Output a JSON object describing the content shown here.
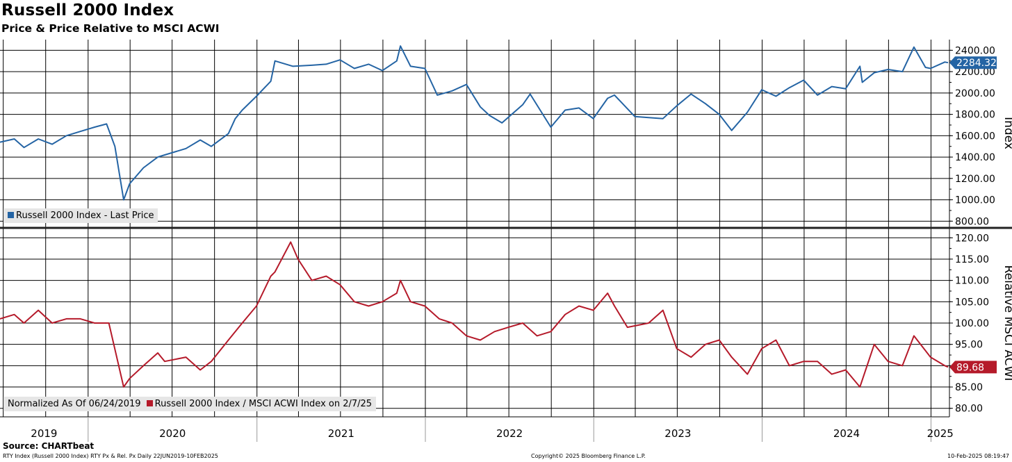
{
  "title": "Russell 2000 Index",
  "subtitle": "Price & Price Relative to MSCI ACWI",
  "source": "Source: CHARTbeat",
  "footer": {
    "left": "RTY Index (Russell 2000 Index) RTY Px & Rel. Px  Daily 22JUN2019-10FEB2025",
    "center": "Copyright© 2025 Bloomberg Finance L.P.",
    "right": "10-Feb-2025 08:19:47"
  },
  "colors": {
    "price": "#2464a4",
    "relative": "#b51a2a",
    "legend_bg": "#e6e6e6",
    "grid": "#000000"
  },
  "chart_data": [
    {
      "type": "line",
      "panel": "top",
      "ylabel": "Index",
      "ylim": [
        750,
        2500
      ],
      "yticks": [
        "800.00",
        "1000.00",
        "1200.00",
        "1400.00",
        "1600.00",
        "1800.00",
        "2000.00",
        "2200.00",
        "2400.00"
      ],
      "series": [
        {
          "name": "Russell 2000 Index - Last Price",
          "last_label": "2284.32",
          "x": [
            "2019-06-24",
            "2019-07-25",
            "2019-08-15",
            "2019-09-15",
            "2019-10-15",
            "2019-11-15",
            "2019-12-15",
            "2020-01-15",
            "2020-02-10",
            "2020-02-28",
            "2020-03-18",
            "2020-03-31",
            "2020-04-30",
            "2020-05-31",
            "2020-06-15",
            "2020-07-31",
            "2020-08-31",
            "2020-09-24",
            "2020-10-31",
            "2020-11-15",
            "2020-11-30",
            "2020-12-31",
            "2021-01-31",
            "2021-02-09",
            "2021-03-20",
            "2021-04-30",
            "2021-05-31",
            "2021-06-30",
            "2021-07-31",
            "2021-08-31",
            "2021-09-30",
            "2021-10-31",
            "2021-11-08",
            "2021-11-30",
            "2021-12-31",
            "2022-01-27",
            "2022-02-28",
            "2022-03-31",
            "2022-04-30",
            "2022-05-20",
            "2022-06-16",
            "2022-07-31",
            "2022-08-16",
            "2022-09-30",
            "2022-10-31",
            "2022-11-30",
            "2022-12-31",
            "2023-01-31",
            "2023-02-15",
            "2023-03-31",
            "2023-04-30",
            "2023-05-31",
            "2023-06-30",
            "2023-07-31",
            "2023-08-31",
            "2023-09-30",
            "2023-10-27",
            "2023-11-30",
            "2023-12-31",
            "2024-01-31",
            "2024-02-29",
            "2024-03-31",
            "2024-04-30",
            "2024-05-31",
            "2024-06-30",
            "2024-07-31",
            "2024-08-05",
            "2024-08-31",
            "2024-09-30",
            "2024-10-31",
            "2024-11-25",
            "2024-12-20",
            "2024-12-31",
            "2025-01-31",
            "2025-02-07"
          ],
          "values": [
            1540,
            1570,
            1490,
            1570,
            1520,
            1600,
            1640,
            1680,
            1710,
            1500,
            1000,
            1150,
            1300,
            1400,
            1420,
            1480,
            1560,
            1500,
            1620,
            1760,
            1840,
            1970,
            2110,
            2300,
            2250,
            2260,
            2270,
            2310,
            2230,
            2270,
            2210,
            2300,
            2440,
            2250,
            2230,
            1980,
            2020,
            2080,
            1870,
            1790,
            1720,
            1890,
            1990,
            1680,
            1840,
            1860,
            1760,
            1950,
            1980,
            1780,
            1770,
            1760,
            1880,
            1990,
            1900,
            1800,
            1650,
            1820,
            2030,
            1970,
            2050,
            2120,
            1980,
            2060,
            2040,
            2250,
            2100,
            2190,
            2220,
            2200,
            2430,
            2240,
            2230,
            2290,
            2284
          ]
        }
      ]
    },
    {
      "type": "line",
      "panel": "bottom",
      "ylabel": "Relative MSCI ACWI",
      "ylim": [
        78,
        122
      ],
      "yticks": [
        "80.00",
        "85.00",
        "90.00",
        "95.00",
        "100.00",
        "105.00",
        "110.00",
        "115.00",
        "120.00"
      ],
      "normalized_label": "Normalized As Of 06/24/2019",
      "series": [
        {
          "name": "Russell 2000 Index / MSCI ACWI Index on 2/7/25",
          "last_label": "89.68",
          "x": [
            "2019-06-24",
            "2019-07-25",
            "2019-08-15",
            "2019-09-15",
            "2019-10-15",
            "2019-11-15",
            "2019-12-15",
            "2020-01-15",
            "2020-02-15",
            "2020-03-18",
            "2020-03-31",
            "2020-04-30",
            "2020-05-31",
            "2020-06-15",
            "2020-07-31",
            "2020-08-31",
            "2020-09-24",
            "2020-10-31",
            "2020-11-30",
            "2020-12-31",
            "2021-01-31",
            "2021-02-09",
            "2021-03-15",
            "2021-03-31",
            "2021-04-30",
            "2021-05-31",
            "2021-06-30",
            "2021-07-31",
            "2021-08-31",
            "2021-09-30",
            "2021-10-31",
            "2021-11-08",
            "2021-11-30",
            "2021-12-31",
            "2022-01-31",
            "2022-02-28",
            "2022-03-31",
            "2022-04-30",
            "2022-05-31",
            "2022-06-30",
            "2022-07-31",
            "2022-08-31",
            "2022-09-30",
            "2022-10-31",
            "2022-11-30",
            "2022-12-31",
            "2023-01-31",
            "2023-02-15",
            "2023-03-15",
            "2023-04-30",
            "2023-05-31",
            "2023-06-30",
            "2023-07-31",
            "2023-08-31",
            "2023-09-30",
            "2023-10-27",
            "2023-11-30",
            "2023-12-31",
            "2024-01-31",
            "2024-02-29",
            "2024-03-31",
            "2024-04-30",
            "2024-05-31",
            "2024-06-30",
            "2024-07-31",
            "2024-08-31",
            "2024-09-30",
            "2024-10-31",
            "2024-11-25",
            "2024-12-31",
            "2025-01-31",
            "2025-02-07"
          ],
          "values": [
            101,
            102,
            100,
            103,
            100,
            101,
            101,
            100,
            100,
            85,
            87,
            90,
            93,
            91,
            92,
            89,
            91,
            96,
            100,
            104,
            111,
            112,
            119,
            115,
            110,
            111,
            109,
            105,
            104,
            105,
            107,
            110,
            105,
            104,
            101,
            100,
            97,
            96,
            98,
            99,
            100,
            97,
            98,
            102,
            104,
            103,
            107,
            104,
            99,
            100,
            103,
            94,
            92,
            95,
            96,
            92,
            88,
            94,
            96,
            90,
            91,
            91,
            88,
            89,
            85,
            95,
            91,
            90,
            97,
            92,
            90,
            89.68
          ]
        }
      ]
    }
  ],
  "xaxis": {
    "years": [
      "2019",
      "2020",
      "2021",
      "2022",
      "2023",
      "2024",
      "2025"
    ]
  }
}
